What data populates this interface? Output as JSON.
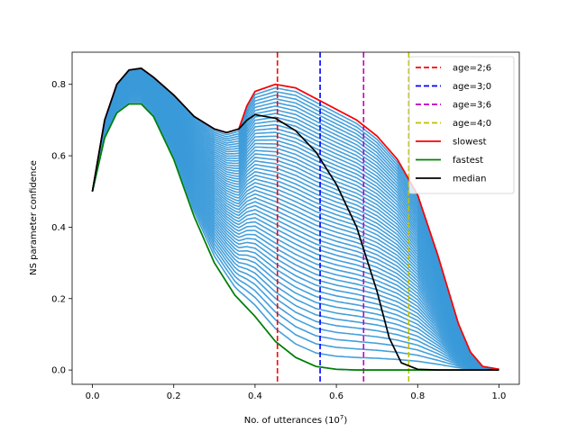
{
  "chart_data": {
    "type": "line",
    "title": "",
    "xlabel": "No. of utterances (10",
    "xlabel_exp": "7",
    "xlabel_close": ")",
    "ylabel": "NS parameter confidence",
    "xlim": [
      -0.05,
      1.05
    ],
    "ylim": [
      -0.04,
      0.89
    ],
    "xticks": [
      0.0,
      0.2,
      0.4,
      0.6,
      0.8,
      1.0
    ],
    "xtick_labels": [
      "0.0",
      "0.2",
      "0.4",
      "0.6",
      "0.8",
      "1.0"
    ],
    "yticks": [
      0.0,
      0.2,
      0.4,
      0.6,
      0.8
    ],
    "ytick_labels": [
      "0.0",
      "0.2",
      "0.4",
      "0.6",
      "0.8"
    ],
    "vlines": [
      {
        "label": "age=2;6",
        "x": 0.455,
        "color": "#ff0000"
      },
      {
        "label": "age=3;0",
        "x": 0.56,
        "color": "#0000ff"
      },
      {
        "label": "age=3;6",
        "x": 0.667,
        "color": "#bf00bf"
      },
      {
        "label": "age=4;0",
        "x": 0.778,
        "color": "#bfbf00"
      }
    ],
    "series": [
      {
        "name": "slowest",
        "color": "#ff0000",
        "x": [
          0,
          0.03,
          0.06,
          0.09,
          0.12,
          0.15,
          0.2,
          0.25,
          0.3,
          0.33,
          0.36,
          0.38,
          0.4,
          0.45,
          0.5,
          0.55,
          0.6,
          0.65,
          0.7,
          0.75,
          0.8,
          0.85,
          0.9,
          0.93,
          0.96,
          1.0
        ],
        "values": [
          0.5,
          0.7,
          0.8,
          0.84,
          0.845,
          0.82,
          0.77,
          0.71,
          0.675,
          0.665,
          0.675,
          0.74,
          0.78,
          0.8,
          0.79,
          0.76,
          0.73,
          0.7,
          0.655,
          0.59,
          0.49,
          0.32,
          0.13,
          0.05,
          0.01,
          0.002
        ]
      },
      {
        "name": "fastest",
        "color": "#008000",
        "x": [
          0,
          0.03,
          0.06,
          0.09,
          0.12,
          0.15,
          0.2,
          0.25,
          0.3,
          0.35,
          0.4,
          0.45,
          0.5,
          0.55,
          0.6,
          0.65,
          0.7,
          0.8,
          0.9,
          1.0
        ],
        "values": [
          0.5,
          0.65,
          0.72,
          0.745,
          0.745,
          0.71,
          0.59,
          0.43,
          0.3,
          0.21,
          0.15,
          0.08,
          0.035,
          0.01,
          0.002,
          0.0,
          0.0,
          0.0,
          0.0,
          0.0
        ]
      },
      {
        "name": "median",
        "color": "#000000",
        "x": [
          0,
          0.03,
          0.06,
          0.09,
          0.12,
          0.15,
          0.2,
          0.25,
          0.3,
          0.33,
          0.36,
          0.38,
          0.4,
          0.45,
          0.5,
          0.55,
          0.6,
          0.65,
          0.7,
          0.73,
          0.76,
          0.8,
          0.85,
          0.9,
          1.0
        ],
        "values": [
          0.5,
          0.7,
          0.8,
          0.84,
          0.845,
          0.82,
          0.77,
          0.71,
          0.675,
          0.665,
          0.675,
          0.7,
          0.715,
          0.705,
          0.67,
          0.61,
          0.52,
          0.4,
          0.22,
          0.09,
          0.02,
          0.002,
          0.0,
          0.0,
          0.0
        ]
      }
    ],
    "band": {
      "color": "#3a9ad9",
      "count": 55,
      "note": "family of individual runs between fastest and slowest"
    },
    "legend": {
      "placement": "top-right",
      "entries": [
        {
          "label": "age=2;6",
          "color": "#ff0000",
          "style": "dashed"
        },
        {
          "label": "age=3;0",
          "color": "#0000ff",
          "style": "dashed"
        },
        {
          "label": "age=3;6",
          "color": "#bf00bf",
          "style": "dashed"
        },
        {
          "label": "age=4;0",
          "color": "#bfbf00",
          "style": "dashed"
        },
        {
          "label": "slowest",
          "color": "#ff0000",
          "style": "solid"
        },
        {
          "label": "fastest",
          "color": "#008000",
          "style": "solid"
        },
        {
          "label": "median",
          "color": "#000000",
          "style": "solid"
        }
      ]
    }
  }
}
